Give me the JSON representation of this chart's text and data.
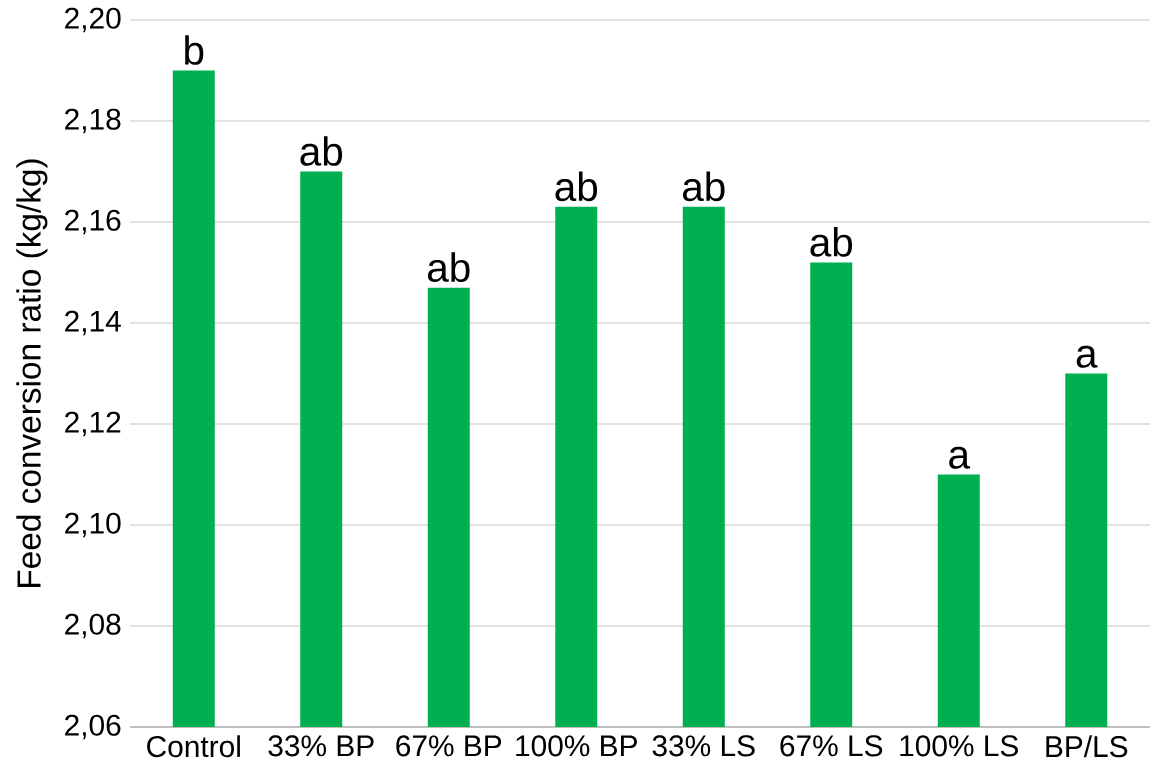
{
  "chart_data": {
    "type": "bar",
    "ylabel": "Feed conversion ratio (kg/kg)",
    "categories": [
      "Control",
      "33% BP",
      "67% BP",
      "100% BP",
      "33% LS",
      "67% LS",
      "100% LS",
      "BP/LS"
    ],
    "values": [
      2.19,
      2.17,
      2.147,
      2.163,
      2.163,
      2.152,
      2.11,
      2.13
    ],
    "color": "#00b050",
    "ylim": [
      2.06,
      2.2
    ],
    "yticks": [
      {
        "value": 2.06,
        "label": "2,06"
      },
      {
        "value": 2.08,
        "label": "2,08"
      },
      {
        "value": 2.1,
        "label": "2,10"
      },
      {
        "value": 2.12,
        "label": "2,12"
      },
      {
        "value": 2.14,
        "label": "2,14"
      },
      {
        "value": 2.16,
        "label": "2,16"
      },
      {
        "value": 2.18,
        "label": "2,18"
      },
      {
        "value": 2.2,
        "label": "2,20"
      }
    ],
    "grid": "y",
    "annotations": [
      {
        "text": "b",
        "x": "Control",
        "y": 2.19
      },
      {
        "text": "ab",
        "x": "33% BP",
        "y": 2.17
      },
      {
        "text": "ab",
        "x": "67% BP",
        "y": 2.147
      },
      {
        "text": "ab",
        "x": "100% BP",
        "y": 2.163
      },
      {
        "text": "ab",
        "x": "33% LS",
        "y": 2.163
      },
      {
        "text": "ab",
        "x": "67% LS",
        "y": 2.152
      },
      {
        "text": "a",
        "x": "100% LS",
        "y": 2.11
      },
      {
        "text": "a",
        "x": "BP/LS",
        "y": 2.13
      }
    ]
  }
}
